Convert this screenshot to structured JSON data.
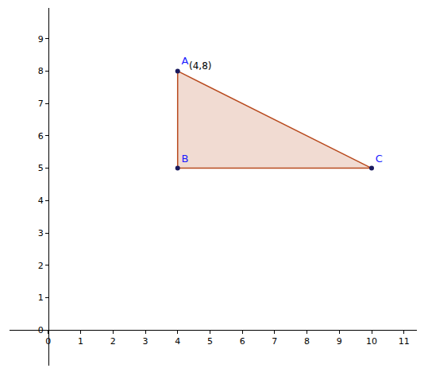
{
  "chart_data": {
    "type": "scatter",
    "x": [
      4,
      4,
      10
    ],
    "y": [
      8,
      5,
      5
    ],
    "point_labels": [
      "A",
      "B",
      "C"
    ],
    "annotations": [
      {
        "text": "(4,8)",
        "x": 4,
        "y": 8
      }
    ],
    "color": "#b84a1e",
    "marker": "circle",
    "xlim": [
      -1.2,
      11.4
    ],
    "ylim": [
      -1.1,
      9.95
    ],
    "xticks": [
      0,
      1,
      2,
      3,
      4,
      5,
      6,
      7,
      8,
      9,
      10,
      11
    ],
    "yticks": [
      0,
      1,
      2,
      3,
      4,
      5,
      6,
      7,
      8,
      9
    ],
    "grid": false
  }
}
